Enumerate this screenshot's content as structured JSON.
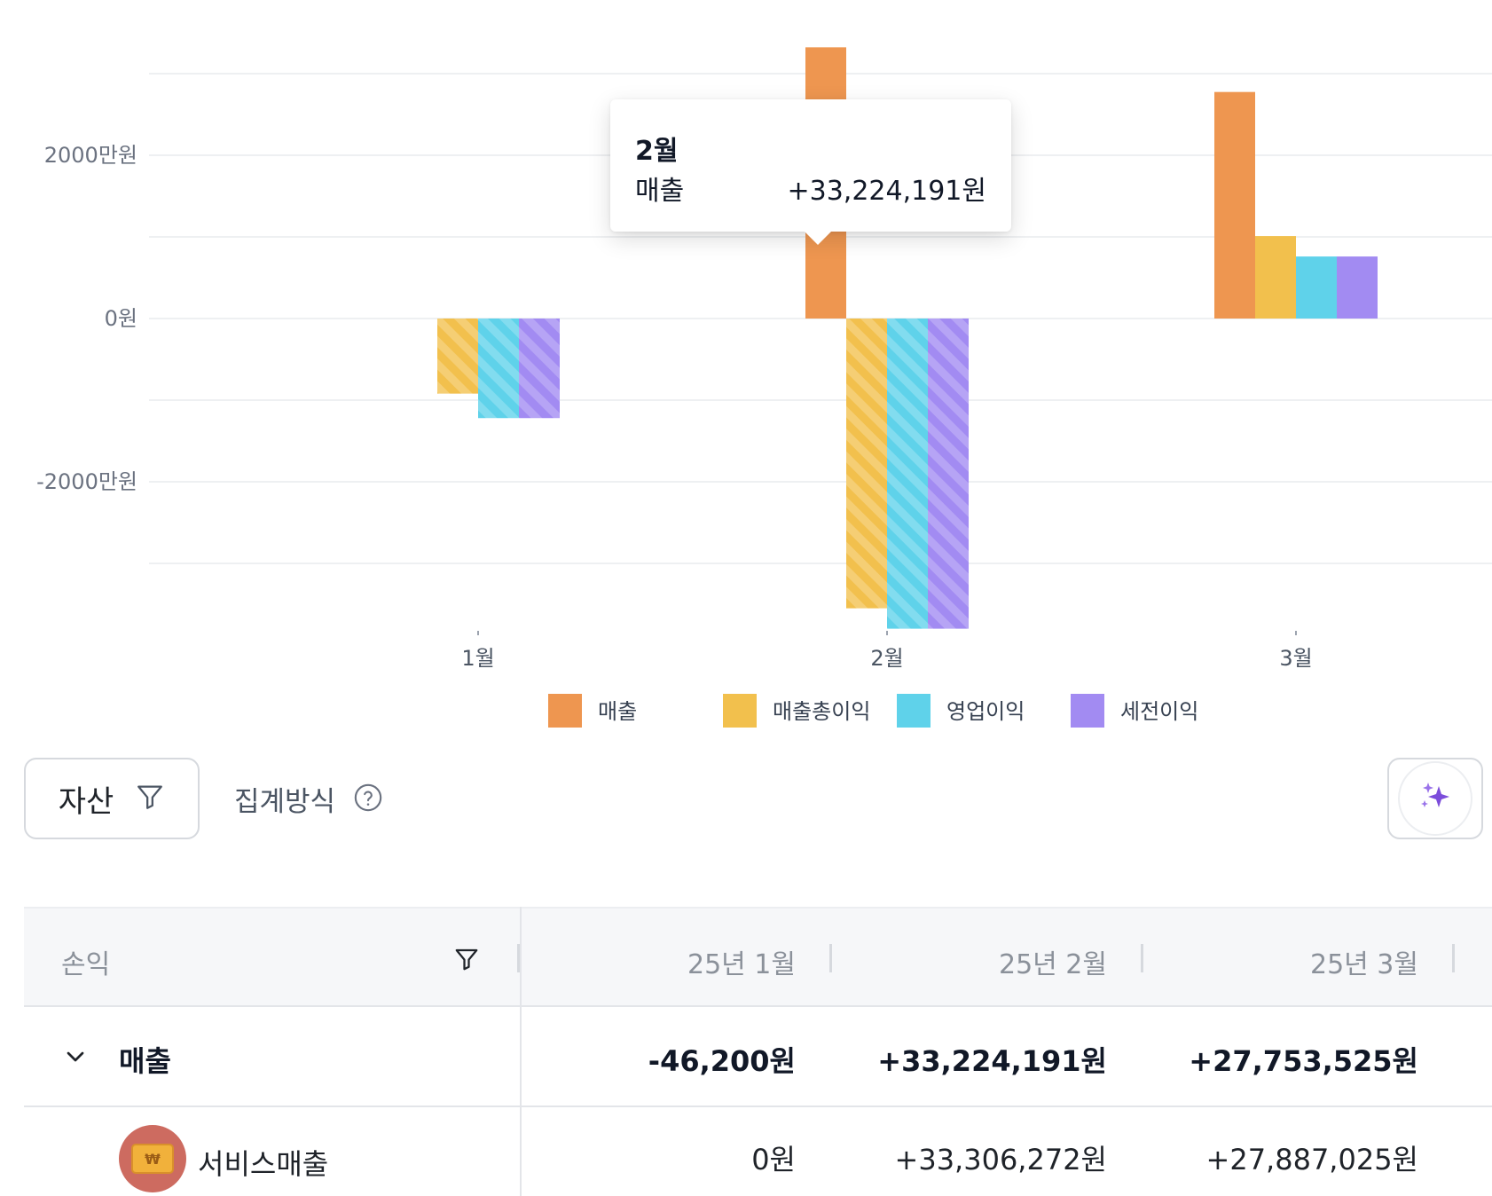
{
  "colors": {
    "revenue": "#ee9650",
    "gross_profit": "#f2c04d",
    "operating_profit": "#5fd2ea",
    "pretax_profit": "#a28bf2"
  },
  "chart_data": {
    "type": "bar",
    "categories": [
      "1월",
      "2월",
      "3월"
    ],
    "y_ticks": [
      "2000만원",
      "0원",
      "-2000만원"
    ],
    "ylim": [
      -38000000,
      38000000
    ],
    "grid": true,
    "legend_position": "bottom",
    "series": [
      {
        "name": "매출",
        "values": [
          -46200,
          33224191,
          27753525
        ],
        "color": "#ee9650"
      },
      {
        "name": "매출총이익",
        "values": [
          -9200000,
          -35500000,
          10100000
        ],
        "color": "#f2c04d"
      },
      {
        "name": "영업이익",
        "values": [
          -12200000,
          -38000000,
          7600000
        ],
        "color": "#5fd2ea"
      },
      {
        "name": "세전이익",
        "values": [
          -12200000,
          -38000000,
          7600000
        ],
        "color": "#a28bf2"
      }
    ],
    "negative_pattern": "diagonal-stripes"
  },
  "tooltip": {
    "title": "2월",
    "label": "매출",
    "value": "+33,224,191원"
  },
  "toolbar": {
    "asset_label": "자산",
    "aggregation_label": "집계방식",
    "help_icon": "question-circle-icon",
    "filter_icon": "filter-icon",
    "ai_icon": "sparkle-icon"
  },
  "table": {
    "first_col_header": "손익",
    "columns": [
      "25년 1월",
      "25년 2월",
      "25년 3월"
    ],
    "rows": [
      {
        "label": "매출",
        "values": [
          "-46,200원",
          "+33,224,191원",
          "+27,753,525원"
        ]
      },
      {
        "label": "서비스매출",
        "avatar_mark": "₩",
        "values": [
          "0원",
          "+33,306,272원",
          "+27,887,025원"
        ]
      }
    ]
  }
}
